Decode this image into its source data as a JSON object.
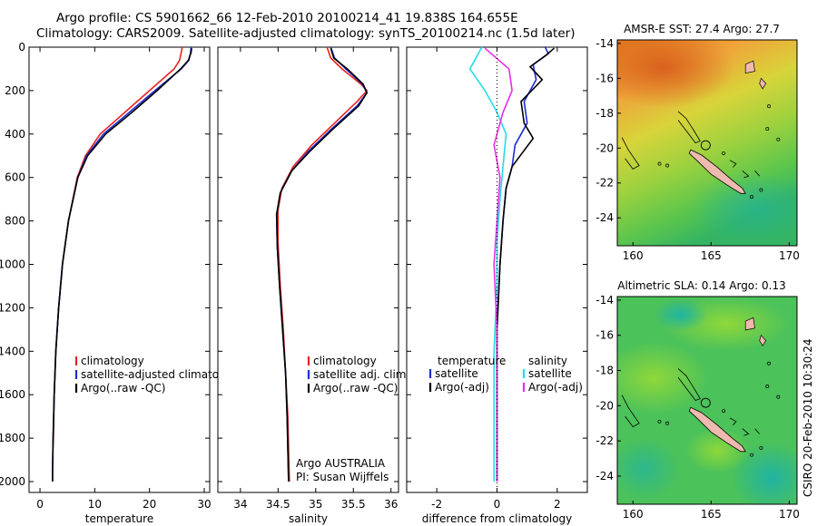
{
  "header": {
    "line1": "Argo profile: CS 5901662_66 12-Feb-2010 20100214_41 19.838S 164.655E",
    "line2": "Climatology: CARS2009. Satellite-adjusted climatology: synTS_20100214.nc (1.5d later)"
  },
  "side_label": "CSIRO 20-Feb-2010 10:30:24",
  "colors": {
    "climatology": "#e8231e",
    "satellite": "#1a2bd6",
    "argo": "#000000",
    "sal_satellite": "#22dde8",
    "sal_argo": "#e62ee6"
  },
  "chart_data": [
    {
      "id": "temperature",
      "type": "line",
      "xlabel": "temperature",
      "ylabel": "",
      "xlim": [
        -2,
        31
      ],
      "ylim": [
        2050,
        0
      ],
      "xticks": [
        0,
        10,
        20,
        30
      ],
      "yticks": [
        0,
        200,
        400,
        600,
        800,
        1000,
        1200,
        1400,
        1600,
        1800,
        2000
      ],
      "legend": [
        "climatology",
        "satellite-adjusted climatology",
        "Argo(..raw -QC)"
      ],
      "series": [
        {
          "name": "climatology",
          "color_key": "climatology",
          "x": [
            26.0,
            25.8,
            25.5,
            24.5,
            20.0,
            15.5,
            11.0,
            8.3,
            6.8,
            5.2,
            4.1,
            3.4,
            2.9,
            2.6,
            2.45,
            2.35
          ],
          "y": [
            0,
            25,
            60,
            100,
            200,
            300,
            400,
            500,
            600,
            800,
            1000,
            1200,
            1400,
            1600,
            1800,
            1850
          ]
        },
        {
          "name": "satellite-adjusted climatology",
          "color_key": "satellite",
          "x": [
            27.6,
            27.5,
            27.2,
            25.8,
            21.0,
            16.3,
            11.6,
            8.5,
            6.9,
            5.2,
            4.1,
            3.4,
            2.9,
            2.6,
            2.4,
            2.3,
            2.3
          ],
          "y": [
            0,
            25,
            60,
            100,
            200,
            300,
            400,
            500,
            600,
            800,
            1000,
            1200,
            1400,
            1600,
            1800,
            1950,
            2000
          ]
        },
        {
          "name": "Argo(..raw -QC)",
          "color_key": "argo",
          "x": [
            27.7,
            27.6,
            27.1,
            25.7,
            21.4,
            16.8,
            12.0,
            8.7,
            6.9,
            5.2,
            4.1,
            3.4,
            2.9,
            2.6,
            2.4,
            2.3,
            2.3
          ],
          "y": [
            5,
            25,
            60,
            100,
            200,
            300,
            400,
            500,
            600,
            800,
            1000,
            1200,
            1400,
            1600,
            1800,
            1950,
            2000
          ]
        }
      ]
    },
    {
      "id": "salinity",
      "type": "line",
      "xlabel": "salinity",
      "xlim": [
        33.7,
        36.1
      ],
      "ylim": [
        2050,
        0
      ],
      "xticks": [
        34,
        34.5,
        35,
        35.5,
        36
      ],
      "legend": [
        "climatology",
        "satellite adj. clim.",
        "Argo(..raw -QC)"
      ],
      "annotation": [
        "Argo AUSTRALIA",
        "PI: Susan Wijffels"
      ],
      "series": [
        {
          "name": "climatology",
          "color_key": "climatology",
          "x": [
            35.15,
            35.2,
            35.35,
            35.6,
            35.68,
            35.55,
            35.25,
            34.95,
            34.7,
            34.55,
            34.5,
            34.5,
            34.53,
            34.57,
            34.6,
            34.63,
            34.64,
            34.65
          ],
          "y": [
            0,
            50,
            100,
            170,
            200,
            250,
            350,
            450,
            550,
            650,
            750,
            900,
            1100,
            1300,
            1500,
            1700,
            1850,
            2000
          ]
        },
        {
          "name": "satellite adj. clim.",
          "color_key": "satellite",
          "x": [
            35.2,
            35.25,
            35.4,
            35.62,
            35.68,
            35.55,
            35.2,
            34.9,
            34.68,
            34.53,
            34.48,
            34.49,
            34.52,
            34.56,
            34.6,
            34.62,
            34.63,
            34.64
          ],
          "y": [
            0,
            50,
            100,
            170,
            210,
            270,
            380,
            480,
            570,
            670,
            770,
            920,
            1100,
            1300,
            1500,
            1700,
            1850,
            2000
          ]
        },
        {
          "name": "Argo(..raw -QC)",
          "color_key": "argo",
          "x": [
            35.2,
            35.24,
            35.42,
            35.63,
            35.68,
            35.57,
            35.22,
            34.92,
            34.68,
            34.53,
            34.48,
            34.49,
            34.52,
            34.56,
            34.6,
            34.62,
            34.63,
            34.64
          ],
          "y": [
            5,
            50,
            100,
            170,
            210,
            270,
            380,
            480,
            570,
            670,
            770,
            920,
            1100,
            1300,
            1500,
            1700,
            1850,
            2000
          ]
        }
      ]
    },
    {
      "id": "difference",
      "type": "line",
      "xlabel": "difference from climatology",
      "xlim": [
        -3,
        3
      ],
      "ylim": [
        2050,
        0
      ],
      "xticks": [
        -2,
        0,
        2
      ],
      "legend_left_title": "temperature",
      "legend_right_title": "salinity",
      "legend_left": [
        "satellite",
        "Argo(-adj)"
      ],
      "legend_right": [
        "satellite",
        "Argo(-adj)"
      ],
      "series": [
        {
          "name": "temperature satellite",
          "color_key": "satellite",
          "x": [
            1.6,
            1.7,
            1.2,
            1.3,
            0.9,
            1.0,
            0.6,
            0.5,
            0.3,
            0.2,
            0.1,
            0.0,
            0.0,
            0.0
          ],
          "y": [
            0,
            30,
            80,
            150,
            250,
            350,
            450,
            550,
            650,
            800,
            1000,
            1300,
            1700,
            2000
          ]
        },
        {
          "name": "temperature Argo(-adj)",
          "color_key": "argo",
          "x": [
            1.9,
            1.6,
            1.1,
            1.5,
            0.8,
            0.9,
            1.2,
            0.5,
            0.3,
            0.2,
            0.1,
            0.0,
            0.0,
            0.0,
            0.0
          ],
          "y": [
            5,
            40,
            90,
            150,
            250,
            350,
            420,
            550,
            650,
            800,
            1000,
            1300,
            1600,
            1800,
            2000
          ]
        },
        {
          "name": "salinity satellite",
          "color_key": "sal_satellite",
          "x": [
            -0.5,
            -0.9,
            -0.4,
            0.0,
            0.3,
            0.2,
            0.1,
            0.0,
            0.0,
            -0.1,
            -0.1,
            -0.1,
            -0.1
          ],
          "y": [
            0,
            100,
            200,
            300,
            400,
            550,
            700,
            900,
            1100,
            1400,
            1700,
            1900,
            2000
          ]
        },
        {
          "name": "salinity Argo(-adj)",
          "color_key": "sal_argo",
          "x": [
            -0.4,
            0.4,
            0.5,
            0.2,
            -0.1,
            0.1,
            0.0,
            -0.1,
            0.0,
            0.0,
            0.0,
            0.0
          ],
          "y": [
            5,
            100,
            200,
            300,
            450,
            600,
            800,
            1000,
            1300,
            1600,
            1900,
            2000
          ]
        }
      ]
    },
    {
      "id": "sst_map",
      "type": "heatmap",
      "title": "AMSR-E SST: 27.4 Argo: 27.7",
      "xlim": [
        159,
        170.5
      ],
      "ylim": [
        -25.6,
        -13.8
      ],
      "xticks": [
        160,
        165,
        170
      ],
      "yticks": [
        -14,
        -16,
        -18,
        -20,
        -22,
        -24
      ],
      "marker": {
        "lon": 164.655,
        "lat": -19.838
      }
    },
    {
      "id": "sla_map",
      "type": "heatmap",
      "title": "Altimetric SLA: 0.14 Argo: 0.13",
      "xlim": [
        159,
        170.5
      ],
      "ylim": [
        -25.6,
        -13.8
      ],
      "xticks": [
        160,
        165,
        170
      ],
      "yticks": [
        -14,
        -16,
        -18,
        -20,
        -22,
        -24
      ],
      "marker": {
        "lon": 164.655,
        "lat": -19.838
      }
    }
  ]
}
